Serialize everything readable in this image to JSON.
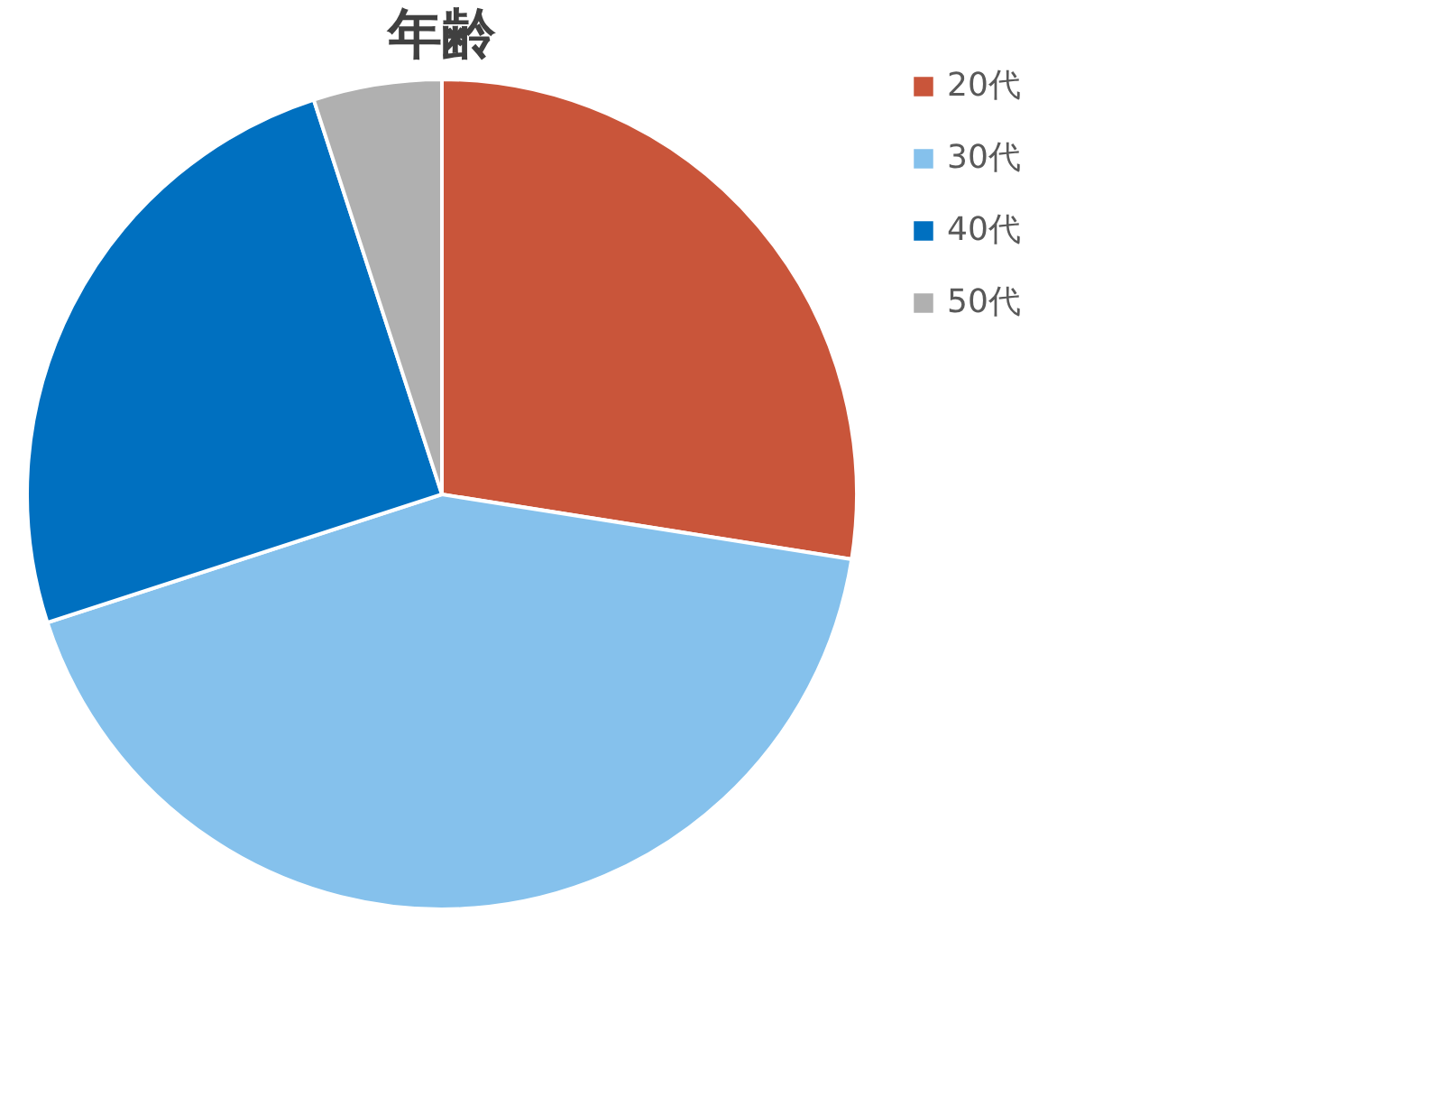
{
  "chart_data": {
    "type": "pie",
    "title": "年齢",
    "categories": [
      "20代",
      "30代",
      "40代",
      "50代"
    ],
    "values": [
      27.5,
      42.5,
      25,
      5
    ],
    "colors": [
      "#c9553a",
      "#85c1ec",
      "#0070c0",
      "#b0b0b0"
    ],
    "legend": "right"
  }
}
